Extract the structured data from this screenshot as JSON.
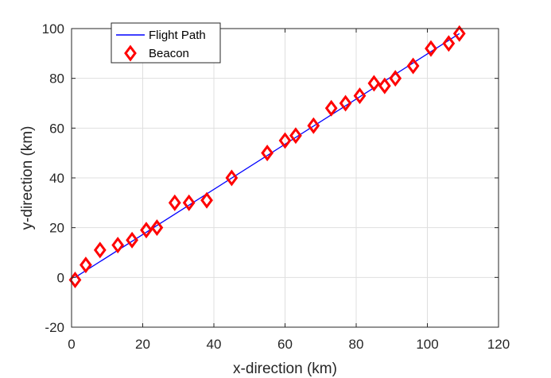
{
  "chart_data": {
    "type": "line",
    "title": "",
    "xlabel": "x-direction (km)",
    "ylabel": "y-direction (km)",
    "xlim": [
      0,
      120
    ],
    "ylim": [
      -20,
      100
    ],
    "xticks": [
      0,
      20,
      40,
      60,
      80,
      100,
      120
    ],
    "yticks": [
      -20,
      0,
      20,
      40,
      60,
      80,
      100
    ],
    "grid": true,
    "legend_position": "top-left",
    "series": [
      {
        "name": "Flight Path",
        "kind": "line",
        "color": "#0000ff",
        "x": [
          1,
          109
        ],
        "y": [
          0,
          98
        ]
      },
      {
        "name": "Beacon",
        "kind": "scatter",
        "marker": "diamond",
        "color": "#ff0000",
        "x": [
          1,
          4,
          8,
          13,
          17,
          21,
          24,
          29,
          33,
          38,
          45,
          55,
          60,
          63,
          68,
          73,
          77,
          81,
          85,
          88,
          91,
          96,
          101,
          106,
          109
        ],
        "y": [
          -1,
          5,
          11,
          13,
          15,
          19,
          20,
          30,
          30,
          31,
          40,
          50,
          55,
          57,
          61,
          68,
          70,
          73,
          78,
          77,
          80,
          85,
          92,
          94,
          98
        ]
      }
    ]
  }
}
